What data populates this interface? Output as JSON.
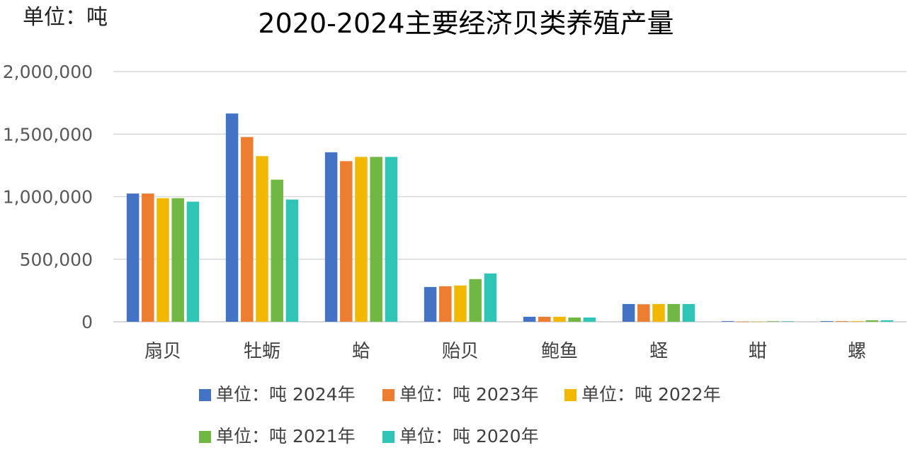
{
  "chart_data": {
    "type": "bar",
    "title": "2020-2024主要经济贝类养殖产量",
    "unit_label": "单位：吨",
    "xlabel": "",
    "ylabel": "",
    "ylim": [
      0,
      2000000
    ],
    "yticks": [
      0,
      500000,
      1000000,
      1500000,
      2000000
    ],
    "ytick_labels": [
      "0",
      "500,000",
      "1,000,000",
      "1,500,000",
      "2,000,000"
    ],
    "grid": true,
    "legend_position": "bottom",
    "categories": [
      "扇贝",
      "牡蛎",
      "蛤",
      "贻贝",
      "鲍鱼",
      "蛏",
      "蚶",
      "螺"
    ],
    "series": [
      {
        "name": "单位：吨 2024年",
        "color": "#4472C4",
        "values": [
          1025000,
          1665000,
          1355000,
          278000,
          40000,
          142000,
          5000,
          5000
        ]
      },
      {
        "name": "单位：吨 2023年",
        "color": "#ED7D31",
        "values": [
          1025000,
          1477000,
          1284000,
          284000,
          40000,
          140000,
          1000,
          5000
        ]
      },
      {
        "name": "单位：吨 2022年",
        "color": "#F2B800",
        "values": [
          988000,
          1324000,
          1318000,
          290000,
          40000,
          142000,
          1000,
          5000
        ]
      },
      {
        "name": "单位：吨 2021年",
        "color": "#70B843",
        "values": [
          988000,
          1136000,
          1318000,
          341000,
          34000,
          142000,
          4000,
          12000
        ]
      },
      {
        "name": "单位：吨 2020年",
        "color": "#2EC4B6",
        "values": [
          960000,
          977000,
          1318000,
          386000,
          34000,
          142000,
          4000,
          12000
        ]
      }
    ]
  }
}
